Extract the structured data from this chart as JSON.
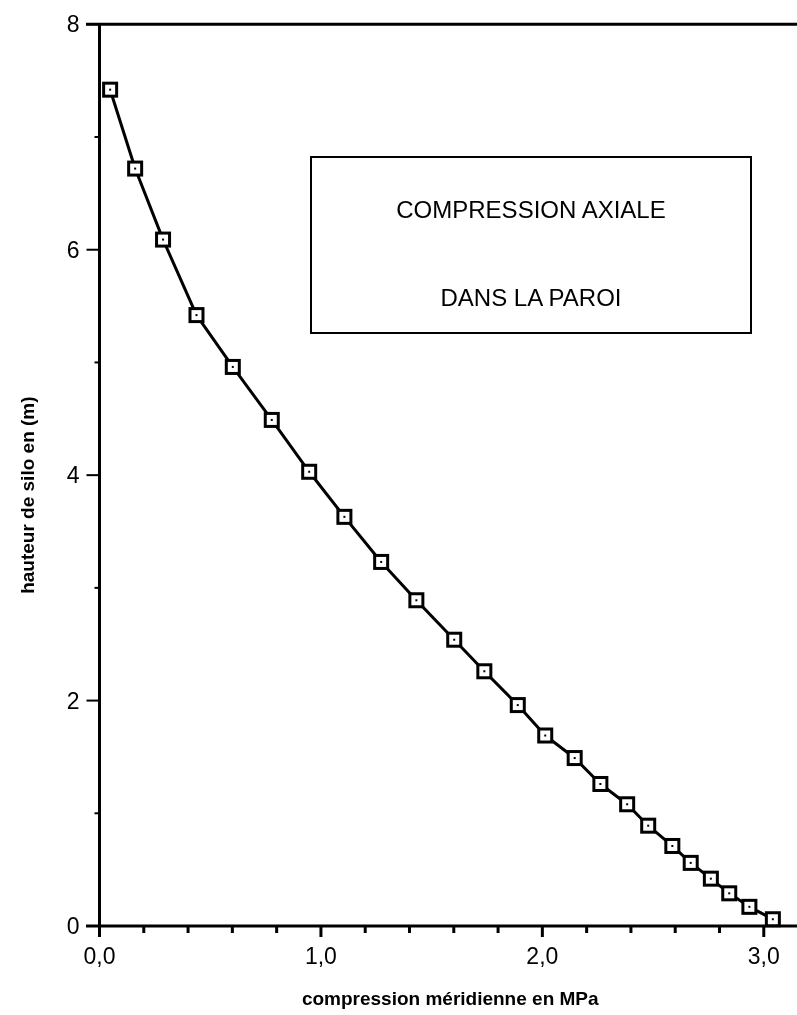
{
  "chart_data": {
    "type": "line",
    "xlabel": "compression méridienne en MPa",
    "ylabel": "hauteur de silo en (m)",
    "annotations": [
      "COMPRESSION AXIALE",
      "DANS LA PAROI"
    ],
    "x": [
      0.048,
      0.161,
      0.287,
      0.438,
      0.602,
      0.778,
      0.947,
      1.106,
      1.272,
      1.431,
      1.602,
      1.738,
      1.889,
      2.013,
      2.146,
      2.262,
      2.383,
      2.478,
      2.587,
      2.67,
      2.761,
      2.844,
      2.935,
      3.041
    ],
    "series": [
      {
        "color": "#000000",
        "values": [
          7.42,
          6.72,
          6.09,
          5.42,
          4.96,
          4.49,
          4.03,
          3.63,
          3.23,
          2.89,
          2.54,
          2.26,
          1.96,
          1.69,
          1.49,
          1.26,
          1.08,
          0.89,
          0.71,
          0.56,
          0.42,
          0.29,
          0.17,
          0.06
        ]
      }
    ],
    "xlim": [
      0,
      3.15
    ],
    "ylim": [
      0,
      8
    ],
    "xticks": [
      {
        "value": 0,
        "label": "0,0"
      },
      {
        "value": 0.2,
        "label": null
      },
      {
        "value": 0.4,
        "label": null
      },
      {
        "value": 0.6,
        "label": null
      },
      {
        "value": 0.8,
        "label": null
      },
      {
        "value": 1,
        "label": "1,0"
      },
      {
        "value": 1.2,
        "label": null
      },
      {
        "value": 1.4,
        "label": null
      },
      {
        "value": 1.6,
        "label": null
      },
      {
        "value": 1.8,
        "label": null
      },
      {
        "value": 2,
        "label": "2,0"
      },
      {
        "value": 2.2,
        "label": null
      },
      {
        "value": 2.4,
        "label": null
      },
      {
        "value": 2.6,
        "label": null
      },
      {
        "value": 2.8,
        "label": null
      },
      {
        "value": 3,
        "label": "3,0"
      }
    ],
    "yticks": [
      0,
      {
        "value": 1,
        "label": null
      },
      2,
      {
        "value": 3,
        "label": null
      },
      4,
      {
        "value": 5,
        "label": null
      },
      6,
      {
        "value": 7,
        "label": null
      },
      8
    ],
    "marker": "square",
    "line_style": "solid"
  }
}
